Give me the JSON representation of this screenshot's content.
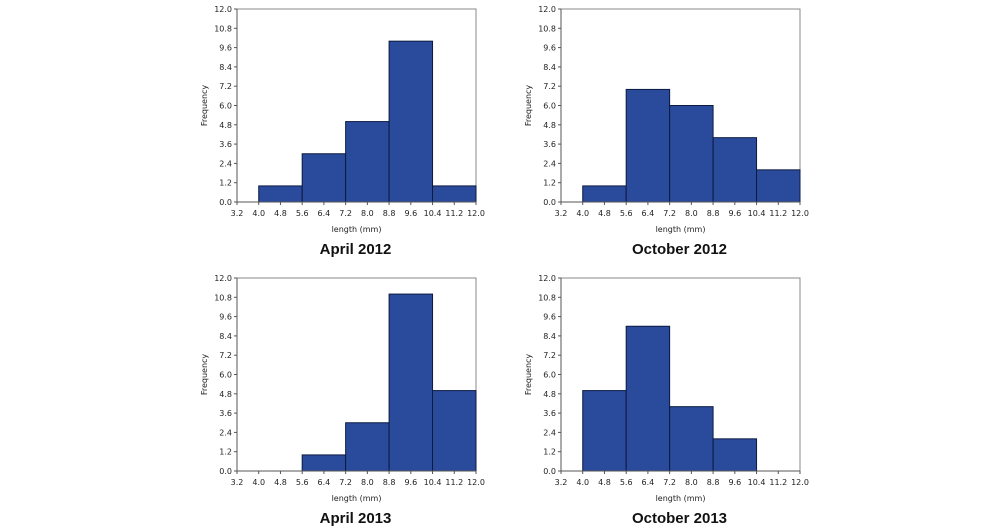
{
  "colors": {
    "bar_fill": "#2a4a9c",
    "bar_stroke": "#0d1a40",
    "axis": "#555555",
    "frame": "#888888"
  },
  "chart_data": [
    {
      "type": "bar",
      "title": "April 2012",
      "xlabel": "length (mm)",
      "ylabel": "Frequency",
      "xlim": [
        3.2,
        12.0
      ],
      "ylim": [
        0,
        12
      ],
      "xticks": [
        "3.2",
        "4.0",
        "4.8",
        "5.6",
        "6.4",
        "7.2",
        "8.0",
        "8.8",
        "9.6",
        "10.4",
        "11.2",
        "12.0"
      ],
      "yticks": [
        "0.0",
        "1.2",
        "2.4",
        "3.6",
        "4.8",
        "6.0",
        "7.2",
        "8.4",
        "9.6",
        "10.8",
        "12.0"
      ],
      "bins": [
        {
          "start": 4.0,
          "end": 5.6,
          "count": 1
        },
        {
          "start": 5.6,
          "end": 7.2,
          "count": 3
        },
        {
          "start": 7.2,
          "end": 8.8,
          "count": 5
        },
        {
          "start": 8.8,
          "end": 10.4,
          "count": 10
        },
        {
          "start": 10.4,
          "end": 12.0,
          "count": 1
        }
      ]
    },
    {
      "type": "bar",
      "title": "October 2012",
      "xlabel": "length (mm)",
      "ylabel": "Frequency",
      "xlim": [
        3.2,
        12.0
      ],
      "ylim": [
        0,
        12
      ],
      "xticks": [
        "3.2",
        "4.0",
        "4.8",
        "5.6",
        "6.4",
        "7.2",
        "8.0",
        "8.8",
        "9.6",
        "10.4",
        "11.2",
        "12.0"
      ],
      "yticks": [
        "0.0",
        "1.2",
        "2.4",
        "3.6",
        "4.8",
        "6.0",
        "7.2",
        "8.4",
        "9.6",
        "10.8",
        "12.0"
      ],
      "bins": [
        {
          "start": 4.0,
          "end": 5.6,
          "count": 1
        },
        {
          "start": 5.6,
          "end": 7.2,
          "count": 7
        },
        {
          "start": 7.2,
          "end": 8.8,
          "count": 6
        },
        {
          "start": 8.8,
          "end": 10.4,
          "count": 4
        },
        {
          "start": 10.4,
          "end": 12.0,
          "count": 2
        }
      ]
    },
    {
      "type": "bar",
      "title": "April 2013",
      "xlabel": "length (mm)",
      "ylabel": "Frequency",
      "xlim": [
        3.2,
        12.0
      ],
      "ylim": [
        0,
        12
      ],
      "xticks": [
        "3.2",
        "4.0",
        "4.8",
        "5.6",
        "6.4",
        "7.2",
        "8.0",
        "8.8",
        "9.6",
        "10.4",
        "11.2",
        "12.0"
      ],
      "yticks": [
        "0.0",
        "1.2",
        "2.4",
        "3.6",
        "4.8",
        "6.0",
        "7.2",
        "8.4",
        "9.6",
        "10.8",
        "12.0"
      ],
      "bins": [
        {
          "start": 5.6,
          "end": 7.2,
          "count": 1
        },
        {
          "start": 7.2,
          "end": 8.8,
          "count": 3
        },
        {
          "start": 8.8,
          "end": 10.4,
          "count": 11
        },
        {
          "start": 10.4,
          "end": 12.0,
          "count": 5
        }
      ]
    },
    {
      "type": "bar",
      "title": "October 2013",
      "xlabel": "length (mm)",
      "ylabel": "Frequency",
      "xlim": [
        3.2,
        12.0
      ],
      "ylim": [
        0,
        12
      ],
      "xticks": [
        "3.2",
        "4.0",
        "4.8",
        "5.6",
        "6.4",
        "7.2",
        "8.0",
        "8.8",
        "9.6",
        "10.4",
        "11.2",
        "12.0"
      ],
      "yticks": [
        "0.0",
        "1.2",
        "2.4",
        "3.6",
        "4.8",
        "6.0",
        "7.2",
        "8.4",
        "9.6",
        "10.8",
        "12.0"
      ],
      "bins": [
        {
          "start": 4.0,
          "end": 5.6,
          "count": 5
        },
        {
          "start": 5.6,
          "end": 7.2,
          "count": 9
        },
        {
          "start": 7.2,
          "end": 8.8,
          "count": 4
        },
        {
          "start": 8.8,
          "end": 10.4,
          "count": 2
        }
      ]
    }
  ]
}
